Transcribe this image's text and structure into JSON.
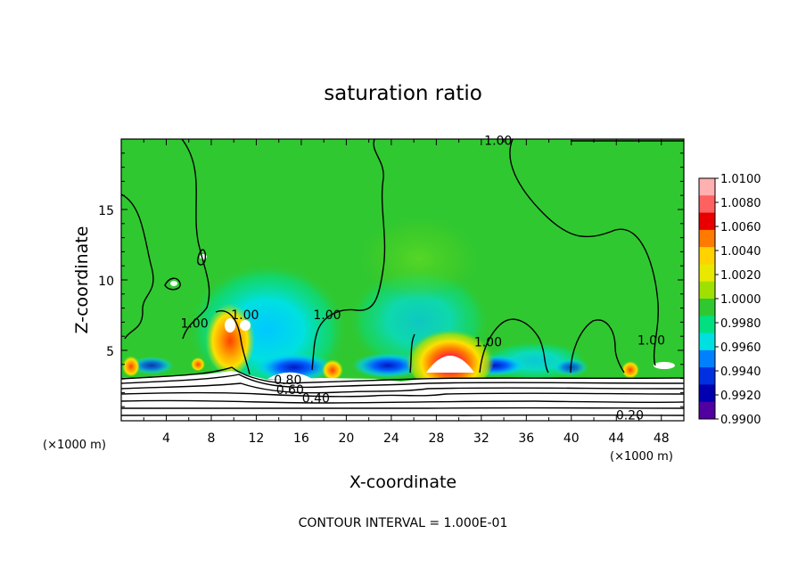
{
  "chart_data": {
    "type": "heatmap",
    "title": "saturation ratio",
    "xlabel": "X-coordinate",
    "ylabel": "Z-coordinate",
    "x_units": "(×1000 m)",
    "z_units": "(×1000 m)",
    "xlim": [
      0,
      50
    ],
    "ylim": [
      0,
      20
    ],
    "x_ticks": [
      4,
      8,
      12,
      16,
      20,
      24,
      28,
      32,
      36,
      40,
      44,
      48
    ],
    "y_ticks": [
      5,
      10,
      15
    ],
    "colorbar": {
      "levels": [
        "1.0100",
        "1.0080",
        "1.0060",
        "1.0040",
        "1.0020",
        "1.0000",
        "0.9980",
        "0.9960",
        "0.9940",
        "0.9920",
        "0.9900"
      ],
      "colors": [
        "#ffb0b0",
        "#ff6060",
        "#e80000",
        "#ff7a00",
        "#ffd200",
        "#e8e800",
        "#a0e000",
        "#30c830",
        "#00e080",
        "#00e0e0",
        "#0080ff",
        "#0030e0",
        "#0000b0",
        "#5000a0"
      ]
    },
    "contour_labels": [
      {
        "text": "1.00",
        "x": 33.5,
        "z": 19.6
      },
      {
        "text": "1.00",
        "x": 6.5,
        "z": 6.6
      },
      {
        "text": "1.00",
        "x": 11,
        "z": 7.2
      },
      {
        "text": "1.00",
        "x": 18.3,
        "z": 7.2
      },
      {
        "text": "1.00",
        "x": 32.6,
        "z": 5.3
      },
      {
        "text": "1.00",
        "x": 47.1,
        "z": 5.4
      },
      {
        "text": "0.80",
        "x": 14.8,
        "z": 2.6
      },
      {
        "text": "0.60",
        "x": 15,
        "z": 1.9
      },
      {
        "text": "0.40",
        "x": 17.3,
        "z": 1.3
      },
      {
        "text": "0.20",
        "x": 45.2,
        "z": 0.1
      }
    ],
    "contour_interval": "1.000E-01"
  },
  "footer": "CONTOUR INTERVAL = 1.000E-01"
}
